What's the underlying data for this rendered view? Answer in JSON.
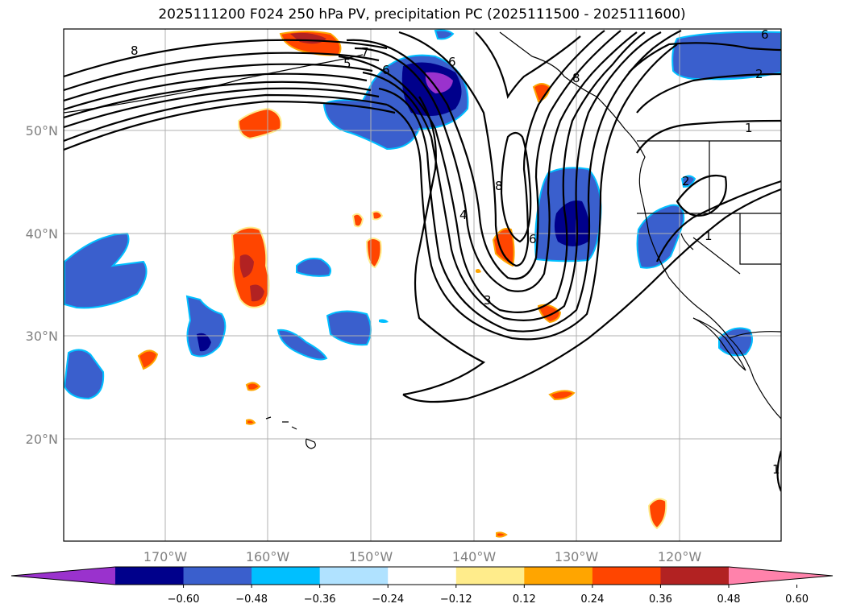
{
  "title": "2025111200 F024 250 hPa PV, precipitation PC (2025111500 - 2025111600)",
  "axes": {
    "lat_ticks": [
      "20°N",
      "30°N",
      "40°N",
      "50°N"
    ],
    "lon_ticks": [
      "170°W",
      "160°W",
      "150°W",
      "140°W",
      "130°W",
      "120°W"
    ]
  },
  "colorbar": {
    "labels": [
      "−0.60",
      "−0.48",
      "−0.36",
      "−0.24",
      "−0.12",
      "0.12",
      "0.24",
      "0.36",
      "0.48",
      "0.60"
    ],
    "colors": [
      "#9a32cd",
      "#00008b",
      "#3a5fcd",
      "#00bfff",
      "#b0e2ff",
      "#ffffff",
      "#ffec8b",
      "#ffa500",
      "#ff4500",
      "#b22222",
      "#ff82ab"
    ]
  },
  "contour_labels": [
    "8",
    "7",
    "6",
    "5",
    "6",
    "8",
    "4",
    "3",
    "6",
    "8",
    "1",
    "2",
    "1",
    "2",
    "6",
    "1"
  ],
  "colors": {
    "grid": "#b0b0b0",
    "contour": "#000000",
    "coast": "#000000"
  }
}
